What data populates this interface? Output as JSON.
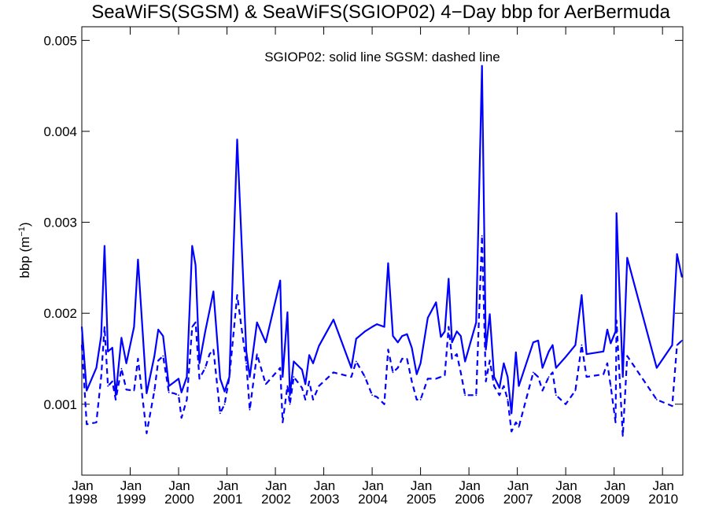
{
  "chart_data": {
    "type": "line",
    "title": "SeaWiFS(SGSM) & SeaWiFS(SGIOP02) 4−Day bbp for AerBermuda",
    "annotation": "SGIOP02: solid line   SGSM: dashed line",
    "ylabel_main": "bbp (m",
    "ylabel_sup": "−1",
    "ylabel_close": ")",
    "xlim": [
      1998.0,
      2010.42
    ],
    "ylim": [
      0.00022,
      0.00515
    ],
    "yticks": [
      {
        "value": 0.001,
        "label": "0.001"
      },
      {
        "value": 0.002,
        "label": "0.002"
      },
      {
        "value": 0.003,
        "label": "0.003"
      },
      {
        "value": 0.004,
        "label": "0.004"
      },
      {
        "value": 0.005,
        "label": "0.005"
      }
    ],
    "xticks": [
      {
        "value": 1998,
        "month": "Jan",
        "year": "1998"
      },
      {
        "value": 1999,
        "month": "Jan",
        "year": "1999"
      },
      {
        "value": 2000,
        "month": "Jan",
        "year": "2000"
      },
      {
        "value": 2001,
        "month": "Jan",
        "year": "2001"
      },
      {
        "value": 2002,
        "month": "Jan",
        "year": "2002"
      },
      {
        "value": 2003,
        "month": "Jan",
        "year": "2003"
      },
      {
        "value": 2004,
        "month": "Jan",
        "year": "2004"
      },
      {
        "value": 2005,
        "month": "Jan",
        "year": "2005"
      },
      {
        "value": 2006,
        "month": "Jan",
        "year": "2006"
      },
      {
        "value": 2007,
        "month": "Jan",
        "year": "2007"
      },
      {
        "value": 2008,
        "month": "Jan",
        "year": "2008"
      },
      {
        "value": 2009,
        "month": "Jan",
        "year": "2009"
      },
      {
        "value": 2010,
        "month": "Jan",
        "year": "2010"
      }
    ],
    "line_color": "#0000ff",
    "series": [
      {
        "name": "SGIOP02",
        "style": "solid",
        "points": [
          [
            1998.0,
            0.00185
          ],
          [
            1998.1,
            0.00115
          ],
          [
            1998.3,
            0.0014
          ],
          [
            1998.4,
            0.00175
          ],
          [
            1998.47,
            0.00274
          ],
          [
            1998.54,
            0.00158
          ],
          [
            1998.63,
            0.00162
          ],
          [
            1998.7,
            0.0011
          ],
          [
            1998.82,
            0.00173
          ],
          [
            1998.92,
            0.00145
          ],
          [
            1999.08,
            0.00185
          ],
          [
            1999.16,
            0.00259
          ],
          [
            1999.34,
            0.00112
          ],
          [
            1999.5,
            0.00153
          ],
          [
            1999.58,
            0.00182
          ],
          [
            1999.68,
            0.00175
          ],
          [
            1999.8,
            0.0012
          ],
          [
            1999.9,
            0.00124
          ],
          [
            2000.0,
            0.00128
          ],
          [
            2000.06,
            0.00113
          ],
          [
            2000.17,
            0.0013
          ],
          [
            2000.28,
            0.00274
          ],
          [
            2000.35,
            0.00253
          ],
          [
            2000.43,
            0.00145
          ],
          [
            2000.55,
            0.0018
          ],
          [
            2000.64,
            0.00203
          ],
          [
            2000.72,
            0.00224
          ],
          [
            2000.86,
            0.00128
          ],
          [
            2000.95,
            0.00114
          ],
          [
            2001.05,
            0.0013
          ],
          [
            2001.21,
            0.00391
          ],
          [
            2001.4,
            0.00158
          ],
          [
            2001.47,
            0.0013
          ],
          [
            2001.62,
            0.0019
          ],
          [
            2001.8,
            0.00168
          ],
          [
            2002.1,
            0.00236
          ],
          [
            2002.15,
            0.0013
          ],
          [
            2002.25,
            0.00201
          ],
          [
            2002.3,
            0.0011
          ],
          [
            2002.38,
            0.00147
          ],
          [
            2002.55,
            0.00138
          ],
          [
            2002.62,
            0.00122
          ],
          [
            2002.7,
            0.00154
          ],
          [
            2002.78,
            0.00145
          ],
          [
            2002.9,
            0.00164
          ],
          [
            2003.2,
            0.00193
          ],
          [
            2003.57,
            0.0014
          ],
          [
            2003.67,
            0.00172
          ],
          [
            2003.85,
            0.0018
          ],
          [
            2004.0,
            0.00185
          ],
          [
            2004.1,
            0.00188
          ],
          [
            2004.25,
            0.00185
          ],
          [
            2004.33,
            0.00255
          ],
          [
            2004.43,
            0.00175
          ],
          [
            2004.53,
            0.00168
          ],
          [
            2004.62,
            0.00175
          ],
          [
            2004.72,
            0.00177
          ],
          [
            2004.82,
            0.00162
          ],
          [
            2004.92,
            0.00133
          ],
          [
            2005.0,
            0.00145
          ],
          [
            2005.15,
            0.00195
          ],
          [
            2005.32,
            0.00212
          ],
          [
            2005.42,
            0.00174
          ],
          [
            2005.5,
            0.0018
          ],
          [
            2005.58,
            0.00238
          ],
          [
            2005.65,
            0.00168
          ],
          [
            2005.75,
            0.0018
          ],
          [
            2005.83,
            0.00175
          ],
          [
            2005.92,
            0.00147
          ],
          [
            2006.15,
            0.0019
          ],
          [
            2006.27,
            0.00472
          ],
          [
            2006.35,
            0.0016
          ],
          [
            2006.43,
            0.00199
          ],
          [
            2006.52,
            0.0013
          ],
          [
            2006.63,
            0.00118
          ],
          [
            2006.72,
            0.00145
          ],
          [
            2006.8,
            0.0013
          ],
          [
            2006.88,
            0.0009
          ],
          [
            2006.97,
            0.00157
          ],
          [
            2007.03,
            0.0012
          ],
          [
            2007.33,
            0.00168
          ],
          [
            2007.43,
            0.0017
          ],
          [
            2007.52,
            0.0014
          ],
          [
            2007.65,
            0.00158
          ],
          [
            2007.73,
            0.00165
          ],
          [
            2007.8,
            0.0014
          ],
          [
            2008.0,
            0.00152
          ],
          [
            2008.2,
            0.00165
          ],
          [
            2008.33,
            0.0022
          ],
          [
            2008.43,
            0.00155
          ],
          [
            2008.78,
            0.00158
          ],
          [
            2008.86,
            0.00182
          ],
          [
            2008.93,
            0.00167
          ],
          [
            2009.03,
            0.0018
          ],
          [
            2009.05,
            0.0031
          ],
          [
            2009.18,
            0.0013
          ],
          [
            2009.27,
            0.00261
          ],
          [
            2009.88,
            0.0014
          ],
          [
            2010.2,
            0.00165
          ],
          [
            2010.3,
            0.00265
          ],
          [
            2010.4,
            0.0024
          ]
        ]
      },
      {
        "name": "SGSM",
        "style": "dashed",
        "points": [
          [
            1998.0,
            0.00165
          ],
          [
            1998.1,
            0.00078
          ],
          [
            1998.3,
            0.0008
          ],
          [
            1998.4,
            0.0013
          ],
          [
            1998.47,
            0.00185
          ],
          [
            1998.54,
            0.0012
          ],
          [
            1998.63,
            0.00125
          ],
          [
            1998.7,
            0.00105
          ],
          [
            1998.82,
            0.00139
          ],
          [
            1998.92,
            0.00116
          ],
          [
            1999.08,
            0.00115
          ],
          [
            1999.16,
            0.0015
          ],
          [
            1999.34,
            0.00068
          ],
          [
            1999.5,
            0.00115
          ],
          [
            1999.58,
            0.00148
          ],
          [
            1999.68,
            0.00153
          ],
          [
            1999.8,
            0.00113
          ],
          [
            1999.9,
            0.00112
          ],
          [
            2000.0,
            0.0011
          ],
          [
            2000.06,
            0.00085
          ],
          [
            2000.17,
            0.00105
          ],
          [
            2000.28,
            0.00185
          ],
          [
            2000.35,
            0.0019
          ],
          [
            2000.43,
            0.00128
          ],
          [
            2000.55,
            0.0014
          ],
          [
            2000.64,
            0.00155
          ],
          [
            2000.72,
            0.0016
          ],
          [
            2000.86,
            0.0009
          ],
          [
            2000.95,
            0.001
          ],
          [
            2001.05,
            0.0013
          ],
          [
            2001.21,
            0.0022
          ],
          [
            2001.4,
            0.00145
          ],
          [
            2001.47,
            0.00094
          ],
          [
            2001.62,
            0.00155
          ],
          [
            2001.8,
            0.00122
          ],
          [
            2002.1,
            0.0014
          ],
          [
            2002.15,
            0.0008
          ],
          [
            2002.25,
            0.0012
          ],
          [
            2002.3,
            0.001
          ],
          [
            2002.38,
            0.0013
          ],
          [
            2002.55,
            0.00118
          ],
          [
            2002.62,
            0.00105
          ],
          [
            2002.7,
            0.00125
          ],
          [
            2002.78,
            0.00105
          ],
          [
            2002.9,
            0.0012
          ],
          [
            2003.2,
            0.00135
          ],
          [
            2003.57,
            0.0013
          ],
          [
            2003.67,
            0.00147
          ],
          [
            2003.85,
            0.0013
          ],
          [
            2004.0,
            0.0011
          ],
          [
            2004.1,
            0.00108
          ],
          [
            2004.25,
            0.001
          ],
          [
            2004.33,
            0.0016
          ],
          [
            2004.43,
            0.00135
          ],
          [
            2004.53,
            0.0014
          ],
          [
            2004.62,
            0.0015
          ],
          [
            2004.72,
            0.0015
          ],
          [
            2004.82,
            0.00125
          ],
          [
            2004.92,
            0.00105
          ],
          [
            2005.0,
            0.00105
          ],
          [
            2005.15,
            0.00128
          ],
          [
            2005.32,
            0.00128
          ],
          [
            2005.42,
            0.0013
          ],
          [
            2005.5,
            0.00132
          ],
          [
            2005.58,
            0.00185
          ],
          [
            2005.65,
            0.0015
          ],
          [
            2005.75,
            0.00155
          ],
          [
            2005.83,
            0.00135
          ],
          [
            2005.92,
            0.0011
          ],
          [
            2006.15,
            0.0011
          ],
          [
            2006.27,
            0.00285
          ],
          [
            2006.35,
            0.00125
          ],
          [
            2006.43,
            0.00148
          ],
          [
            2006.52,
            0.0012
          ],
          [
            2006.63,
            0.0011
          ],
          [
            2006.72,
            0.0012
          ],
          [
            2006.8,
            0.00105
          ],
          [
            2006.88,
            0.0007
          ],
          [
            2006.97,
            0.0008
          ],
          [
            2007.03,
            0.00075
          ],
          [
            2007.33,
            0.00135
          ],
          [
            2007.43,
            0.0013
          ],
          [
            2007.52,
            0.00115
          ],
          [
            2007.65,
            0.0013
          ],
          [
            2007.73,
            0.00135
          ],
          [
            2007.8,
            0.0011
          ],
          [
            2008.0,
            0.001
          ],
          [
            2008.2,
            0.00115
          ],
          [
            2008.33,
            0.00165
          ],
          [
            2008.43,
            0.0013
          ],
          [
            2008.78,
            0.00133
          ],
          [
            2008.86,
            0.00145
          ],
          [
            2008.93,
            0.0012
          ],
          [
            2009.03,
            0.0008
          ],
          [
            2009.05,
            0.00192
          ],
          [
            2009.18,
            0.00065
          ],
          [
            2009.27,
            0.00153
          ],
          [
            2009.88,
            0.00105
          ],
          [
            2010.2,
            0.00098
          ],
          [
            2010.3,
            0.00165
          ],
          [
            2010.4,
            0.0017
          ]
        ]
      }
    ]
  }
}
